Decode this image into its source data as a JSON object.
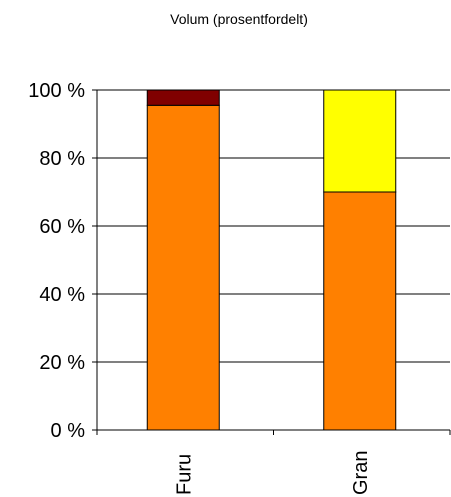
{
  "chart_data": {
    "type": "bar",
    "stacked": true,
    "normalized": true,
    "title": "Volum (prosentfordelt)",
    "xlabel": "",
    "ylabel": "",
    "ylim": [
      0,
      100
    ],
    "yticks": [
      0,
      20,
      40,
      60,
      80,
      100
    ],
    "ytick_labels": [
      "0 %",
      "20 %",
      "40 %",
      "60 %",
      "80 %",
      "100 %"
    ],
    "grid": true,
    "legend": "none",
    "categories": [
      "Furu",
      "Gran"
    ],
    "series": [
      {
        "color": "#FF8000",
        "values": [
          95.5,
          70
        ]
      },
      {
        "color": "#FFFF00",
        "values": [
          0,
          30
        ]
      },
      {
        "color": "#800000",
        "values": [
          4.5,
          0
        ]
      }
    ]
  }
}
